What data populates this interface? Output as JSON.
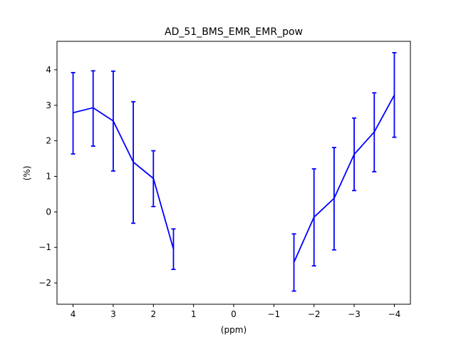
{
  "chart_data": {
    "type": "line",
    "title": "AD_51_BMS_EMR_EMR_pow",
    "xlabel": "(ppm)",
    "ylabel": "(%)",
    "x_inverted": true,
    "xlim": [
      4.4,
      -4.4
    ],
    "ylim": [
      -2.6,
      4.8
    ],
    "xticks": [
      4,
      3,
      2,
      1,
      0,
      -1,
      -2,
      -3,
      -4
    ],
    "xtick_labels": [
      "4",
      "3",
      "2",
      "1",
      "0",
      "−1",
      "−2",
      "−3",
      "−4"
    ],
    "yticks": [
      -2,
      -1,
      0,
      1,
      2,
      3,
      4
    ],
    "ytick_labels": [
      "−2",
      "−1",
      "0",
      "1",
      "2",
      "3",
      "4"
    ],
    "grid": false,
    "legend": false,
    "color": "#0000ff",
    "series": [
      {
        "x": [
          4.0,
          3.5,
          3.0,
          2.5,
          2.0,
          1.5
        ],
        "y": [
          2.79,
          2.93,
          2.56,
          1.4,
          0.94,
          -1.05
        ],
        "err_low": [
          1.63,
          1.85,
          1.15,
          -0.32,
          0.15,
          -1.62
        ],
        "err_high": [
          3.92,
          3.97,
          3.96,
          3.1,
          1.72,
          -0.48
        ]
      },
      {
        "x": [
          -1.5,
          -2.0,
          -2.5,
          -3.0,
          -3.5,
          -4.0
        ],
        "y": [
          -1.42,
          -0.15,
          0.38,
          1.62,
          2.25,
          3.29
        ],
        "err_low": [
          -2.23,
          -1.52,
          -1.07,
          0.6,
          1.13,
          2.1
        ],
        "err_high": [
          -0.62,
          1.21,
          1.81,
          2.64,
          3.35,
          4.48
        ]
      }
    ]
  }
}
